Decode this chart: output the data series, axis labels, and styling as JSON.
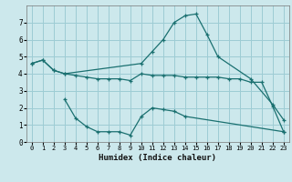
{
  "xlabel": "Humidex (Indice chaleur)",
  "bg_color": "#cce8ec",
  "grid_color": "#9dccd4",
  "line_color": "#1a7070",
  "xlim": [
    -0.5,
    23.5
  ],
  "ylim": [
    0,
    8
  ],
  "xticks": [
    0,
    1,
    2,
    3,
    4,
    5,
    6,
    7,
    8,
    9,
    10,
    11,
    12,
    13,
    14,
    15,
    16,
    17,
    18,
    19,
    20,
    21,
    22,
    23
  ],
  "yticks": [
    0,
    1,
    2,
    3,
    4,
    5,
    6,
    7
  ],
  "series": [
    {
      "x": [
        0,
        1,
        2,
        3,
        4,
        5,
        6,
        7,
        8,
        9,
        10,
        11,
        12,
        13,
        14,
        15,
        16,
        17,
        18,
        19,
        20,
        21,
        22,
        23
      ],
      "y": [
        4.6,
        4.8,
        4.2,
        4.0,
        3.9,
        3.8,
        3.7,
        3.7,
        3.7,
        3.6,
        4.0,
        3.9,
        3.9,
        3.9,
        3.8,
        3.8,
        3.8,
        3.8,
        3.7,
        3.7,
        3.5,
        3.5,
        2.1,
        0.6
      ]
    },
    {
      "x": [
        0,
        1,
        2,
        3,
        10,
        11,
        12,
        13,
        14,
        15,
        16,
        17,
        20,
        22,
        23
      ],
      "y": [
        4.6,
        4.8,
        4.2,
        4.0,
        4.6,
        5.3,
        6.0,
        7.0,
        7.4,
        7.5,
        6.3,
        5.0,
        3.7,
        2.2,
        1.3
      ]
    },
    {
      "x": [
        3,
        4,
        5,
        6,
        7,
        8,
        9,
        10,
        11,
        12,
        13,
        14,
        23
      ],
      "y": [
        2.5,
        1.4,
        0.9,
        0.6,
        0.6,
        0.6,
        0.4,
        1.5,
        2.0,
        1.9,
        1.8,
        1.5,
        0.6
      ]
    }
  ]
}
